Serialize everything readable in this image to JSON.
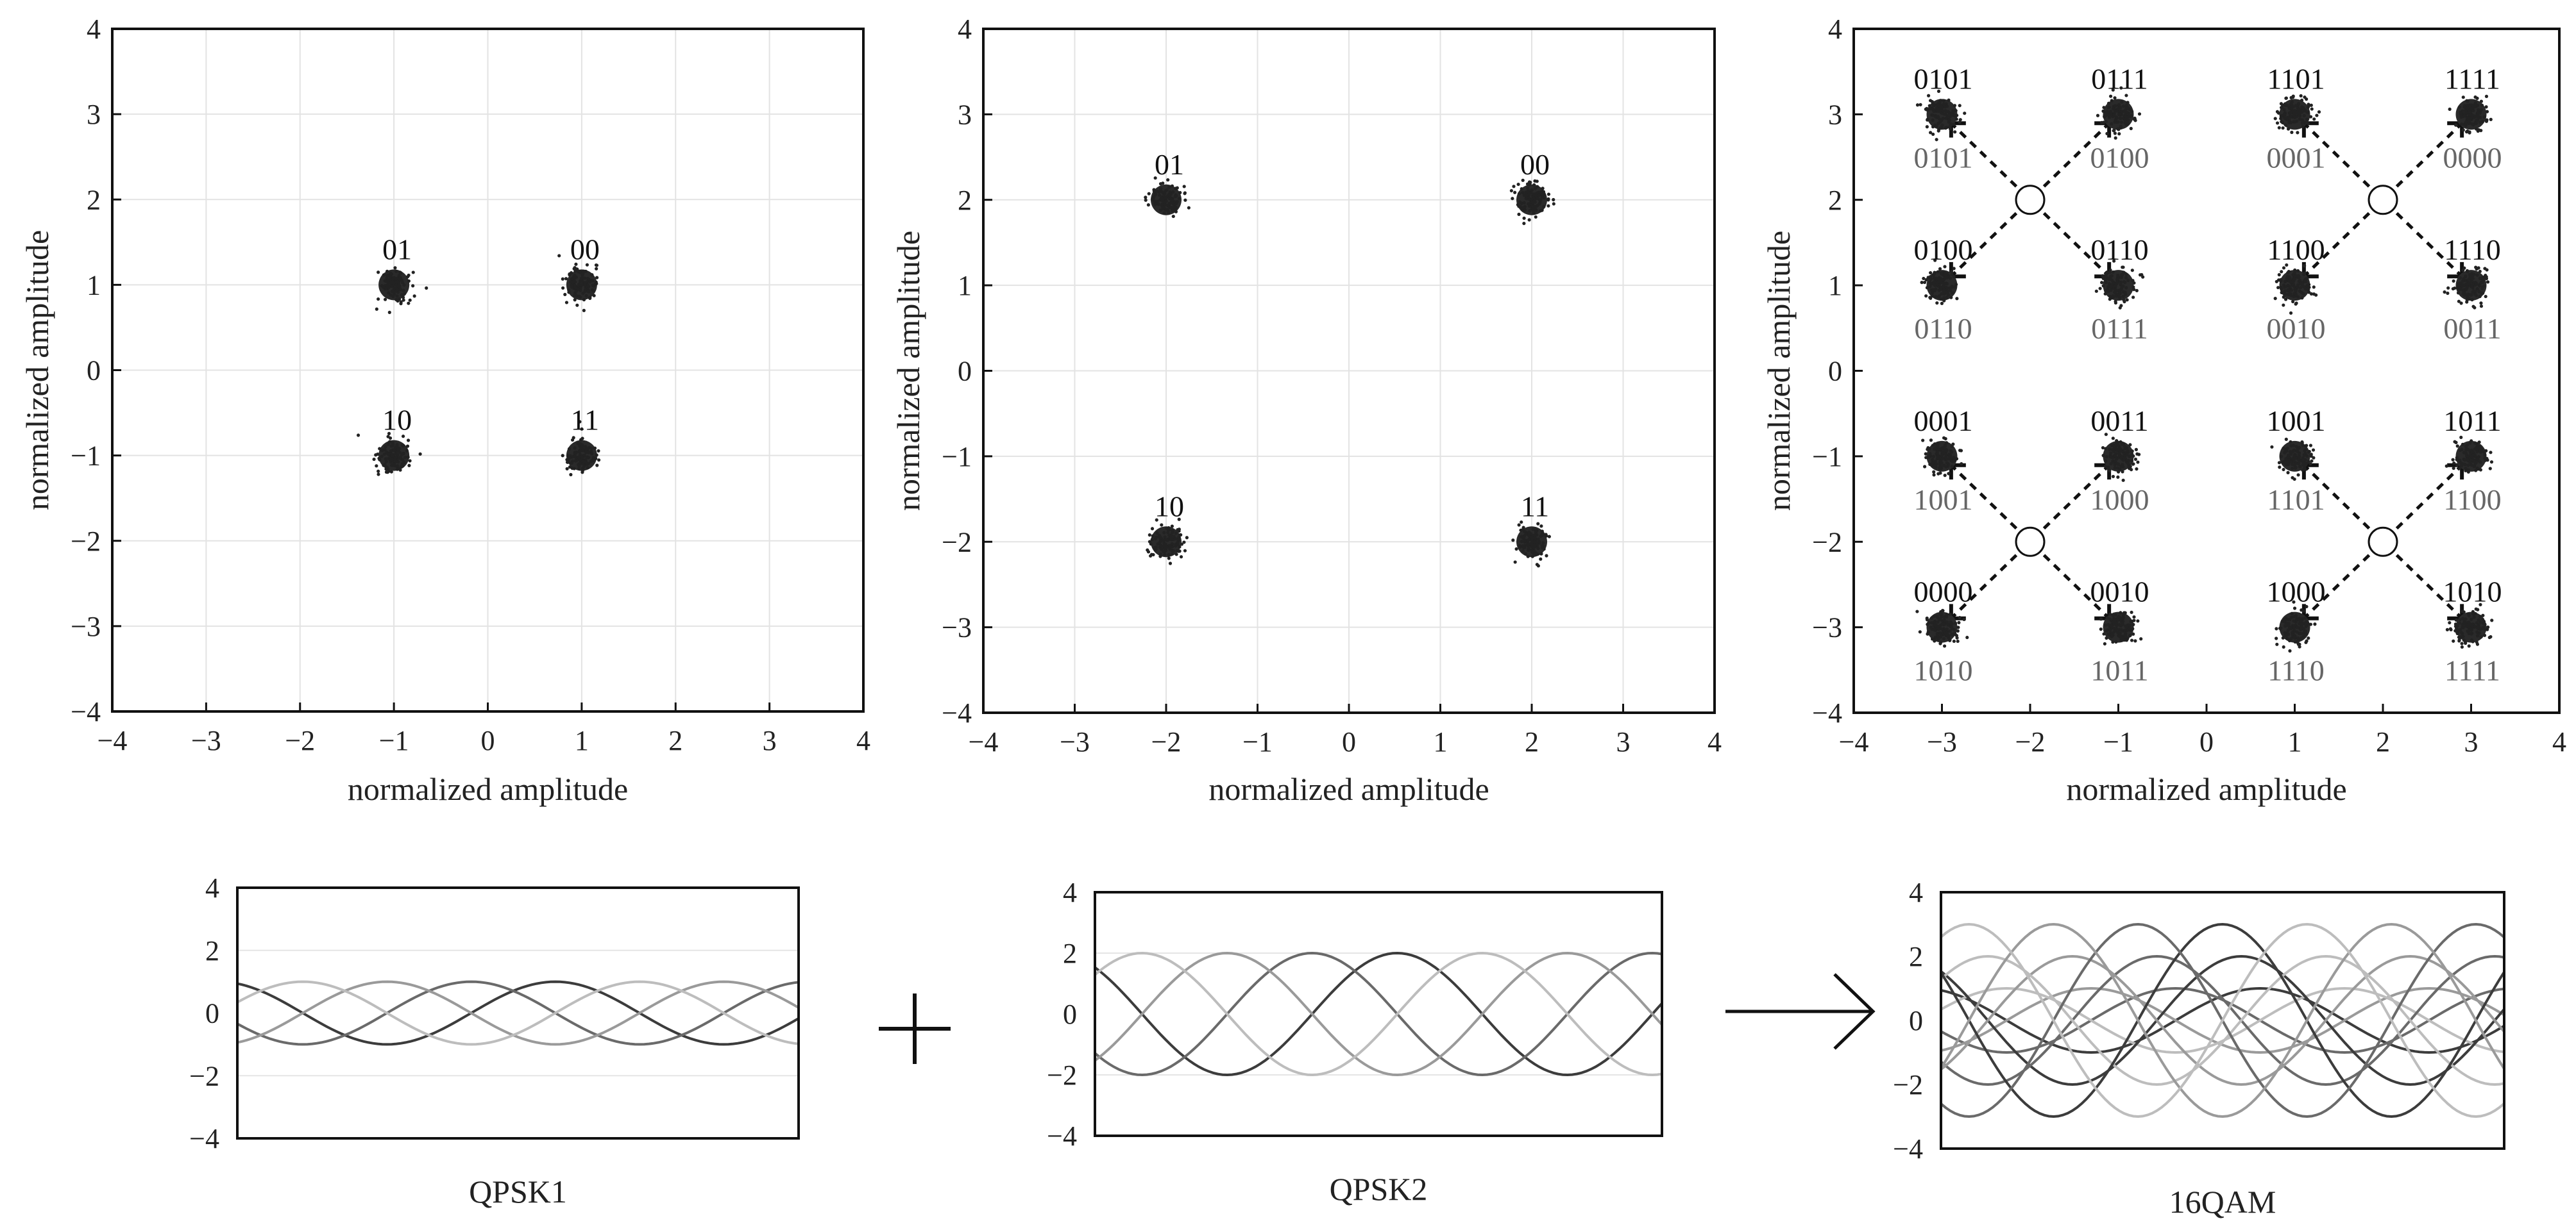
{
  "constellations": [
    {
      "xlabel": "normalized amplitude",
      "ylabel": "normalized amplitude",
      "xlim": [
        -4,
        4
      ],
      "ylim": [
        -4,
        4
      ],
      "ticks": [
        -4,
        -3,
        -2,
        -1,
        0,
        1,
        2,
        3,
        4
      ],
      "grid": true,
      "points": [
        {
          "x": -1,
          "y": 1,
          "label": "01"
        },
        {
          "x": 1,
          "y": 1,
          "label": "00"
        },
        {
          "x": -1,
          "y": -1,
          "label": "10"
        },
        {
          "x": 1,
          "y": -1,
          "label": "11"
        }
      ]
    },
    {
      "xlabel": "normalized amplitude",
      "ylabel": "normalized amplitude",
      "xlim": [
        -4,
        4
      ],
      "ylim": [
        -4,
        4
      ],
      "ticks": [
        -4,
        -3,
        -2,
        -1,
        0,
        1,
        2,
        3,
        4
      ],
      "grid": true,
      "points": [
        {
          "x": -2,
          "y": 2,
          "label": "01"
        },
        {
          "x": 2,
          "y": 2,
          "label": "00"
        },
        {
          "x": -2,
          "y": -2,
          "label": "10"
        },
        {
          "x": 2,
          "y": -2,
          "label": "11"
        }
      ]
    },
    {
      "xlabel": "normalized amplitude",
      "ylabel": "normalized amplitude",
      "xlim": [
        -4,
        4
      ],
      "ylim": [
        -4,
        4
      ],
      "ticks": [
        -4,
        -3,
        -2,
        -1,
        0,
        1,
        2,
        3,
        4
      ],
      "grid": false,
      "points": [
        {
          "x": -3,
          "y": 3,
          "label": "0101",
          "label2": "0101"
        },
        {
          "x": -1,
          "y": 3,
          "label": "0111",
          "label2": "0100"
        },
        {
          "x": 1,
          "y": 3,
          "label": "1101",
          "label2": "0001"
        },
        {
          "x": 3,
          "y": 3,
          "label": "1111",
          "label2": "0000"
        },
        {
          "x": -3,
          "y": 1,
          "label": "0100",
          "label2": "0110"
        },
        {
          "x": -1,
          "y": 1,
          "label": "0110",
          "label2": "0111"
        },
        {
          "x": 1,
          "y": 1,
          "label": "1100",
          "label2": "0010"
        },
        {
          "x": 3,
          "y": 1,
          "label": "1110",
          "label2": "0011"
        },
        {
          "x": -3,
          "y": -1,
          "label": "0001",
          "label2": "1001"
        },
        {
          "x": -1,
          "y": -1,
          "label": "0011",
          "label2": "1000"
        },
        {
          "x": 1,
          "y": -1,
          "label": "1001",
          "label2": "1101"
        },
        {
          "x": 3,
          "y": -1,
          "label": "1011",
          "label2": "1100"
        },
        {
          "x": -3,
          "y": -3,
          "label": "0000",
          "label2": "1010"
        },
        {
          "x": -1,
          "y": -3,
          "label": "0010",
          "label2": "1011"
        },
        {
          "x": 1,
          "y": -3,
          "label": "1000",
          "label2": "1110"
        },
        {
          "x": 3,
          "y": -3,
          "label": "1010",
          "label2": "1111"
        }
      ],
      "centers": [
        {
          "x": -2,
          "y": 2
        },
        {
          "x": 2,
          "y": 2
        },
        {
          "x": -2,
          "y": -2
        },
        {
          "x": 2,
          "y": -2
        }
      ]
    }
  ],
  "waveforms": [
    {
      "caption": "QPSK1",
      "ylim": [
        -4,
        4
      ],
      "ticks": [
        -4,
        -2,
        0,
        2,
        4
      ],
      "amplitudes": [
        1
      ],
      "gridlines": [
        -2,
        2
      ]
    },
    {
      "caption": "QPSK2",
      "ylim": [
        -4,
        4
      ],
      "ticks": [
        -4,
        -2,
        0,
        2,
        4
      ],
      "amplitudes": [
        2
      ],
      "gridlines": [
        -2,
        2
      ]
    },
    {
      "caption": "16QAM",
      "ylim": [
        -4,
        4
      ],
      "ticks": [
        -4,
        -2,
        0,
        2,
        4
      ],
      "amplitudes": [
        1,
        2,
        3
      ],
      "gridlines": []
    }
  ],
  "operators": {
    "plus": "+",
    "arrow": "→"
  },
  "chart_data": [
    {
      "type": "scatter",
      "xlabel": "normalized amplitude",
      "ylabel": "normalized amplitude",
      "xlim": [
        -4,
        4
      ],
      "ylim": [
        -4,
        4
      ],
      "x": [
        -1,
        1,
        -1,
        1
      ],
      "y": [
        1,
        1,
        -1,
        -1
      ],
      "labels": [
        "01",
        "00",
        "10",
        "11"
      ]
    },
    {
      "type": "scatter",
      "xlabel": "normalized amplitude",
      "ylabel": "normalized amplitude",
      "xlim": [
        -4,
        4
      ],
      "ylim": [
        -4,
        4
      ],
      "x": [
        -2,
        2,
        -2,
        2
      ],
      "y": [
        2,
        2,
        -2,
        -2
      ],
      "labels": [
        "01",
        "00",
        "10",
        "11"
      ]
    },
    {
      "type": "scatter",
      "xlabel": "normalized amplitude",
      "ylabel": "normalized amplitude",
      "xlim": [
        -4,
        4
      ],
      "ylim": [
        -4,
        4
      ],
      "x": [
        -3,
        -1,
        1,
        3,
        -3,
        -1,
        1,
        3,
        -3,
        -1,
        1,
        3,
        -3,
        -1,
        1,
        3
      ],
      "y": [
        3,
        3,
        3,
        3,
        1,
        1,
        1,
        1,
        -1,
        -1,
        -1,
        -1,
        -3,
        -3,
        -3,
        -3
      ],
      "labels": [
        "0101",
        "0111",
        "1101",
        "1111",
        "0100",
        "0110",
        "1100",
        "1110",
        "0001",
        "0011",
        "1001",
        "1011",
        "0000",
        "0010",
        "1000",
        "1010"
      ]
    },
    {
      "type": "line",
      "title": "QPSK1",
      "ylim": [
        -4,
        4
      ],
      "amplitude": 1
    },
    {
      "type": "line",
      "title": "QPSK2",
      "ylim": [
        -4,
        4
      ],
      "amplitude": 2
    },
    {
      "type": "line",
      "title": "16QAM",
      "ylim": [
        -4,
        4
      ],
      "amplitudes": [
        1,
        2,
        3
      ]
    }
  ]
}
